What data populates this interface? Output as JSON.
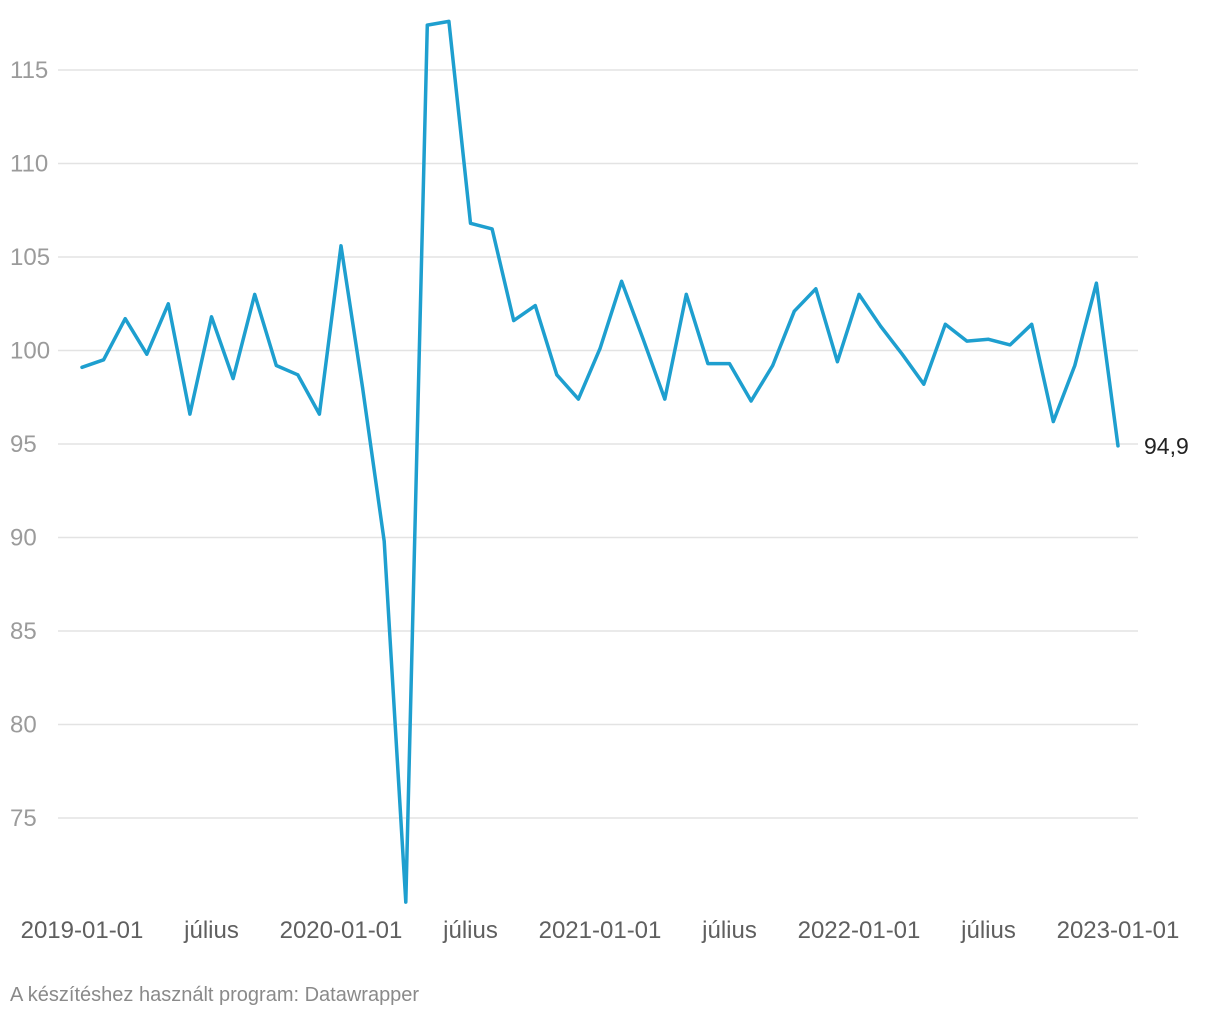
{
  "chart_data": {
    "type": "line",
    "title": "",
    "xlabel": "",
    "ylabel": "",
    "ylim": [
      70,
      118
    ],
    "yticks": [
      75,
      80,
      85,
      90,
      95,
      100,
      105,
      110,
      115
    ],
    "x_tick_labels": [
      {
        "date": "2019-01-01",
        "label": "2019-01-01"
      },
      {
        "date": "2019-07-01",
        "label": "július"
      },
      {
        "date": "2020-01-01",
        "label": "2020-01-01"
      },
      {
        "date": "2020-07-01",
        "label": "július"
      },
      {
        "date": "2021-01-01",
        "label": "2021-01-01"
      },
      {
        "date": "2021-07-01",
        "label": "július"
      },
      {
        "date": "2022-01-01",
        "label": "2022-01-01"
      },
      {
        "date": "2022-07-01",
        "label": "július"
      },
      {
        "date": "2023-01-01",
        "label": "2023-01-01"
      }
    ],
    "x": [
      "2019-01",
      "2019-02",
      "2019-03",
      "2019-04",
      "2019-05",
      "2019-06",
      "2019-07",
      "2019-08",
      "2019-09",
      "2019-10",
      "2019-11",
      "2019-12",
      "2020-01",
      "2020-02",
      "2020-03",
      "2020-04",
      "2020-05",
      "2020-06",
      "2020-07",
      "2020-08",
      "2020-09",
      "2020-10",
      "2020-11",
      "2020-12",
      "2021-01",
      "2021-02",
      "2021-03",
      "2021-04",
      "2021-05",
      "2021-06",
      "2021-07",
      "2021-08",
      "2021-09",
      "2021-10",
      "2021-11",
      "2021-12",
      "2022-01",
      "2022-02",
      "2022-03",
      "2022-04",
      "2022-05",
      "2022-06",
      "2022-07",
      "2022-08",
      "2022-09",
      "2022-10",
      "2022-11",
      "2022-12",
      "2023-01"
    ],
    "series": [
      {
        "values": [
          99.1,
          99.5,
          101.7,
          99.8,
          102.5,
          96.6,
          101.8,
          98.5,
          103.0,
          99.2,
          98.7,
          96.6,
          105.6,
          98.0,
          89.8,
          70.5,
          117.4,
          117.6,
          106.8,
          106.5,
          101.6,
          102.4,
          98.7,
          97.4,
          100.1,
          103.7,
          100.6,
          97.4,
          103.0,
          99.3,
          99.3,
          97.3,
          99.2,
          102.1,
          103.3,
          99.4,
          103.0,
          101.3,
          99.8,
          98.2,
          101.4,
          100.5,
          100.6,
          100.3,
          101.4,
          96.2,
          99.2,
          103.6,
          94.9
        ],
        "color": "#1e9fcf"
      }
    ],
    "end_label": "94,9",
    "grid": true,
    "legend": "none"
  },
  "footer": {
    "credit": "A készítéshez használt program: Datawrapper"
  }
}
